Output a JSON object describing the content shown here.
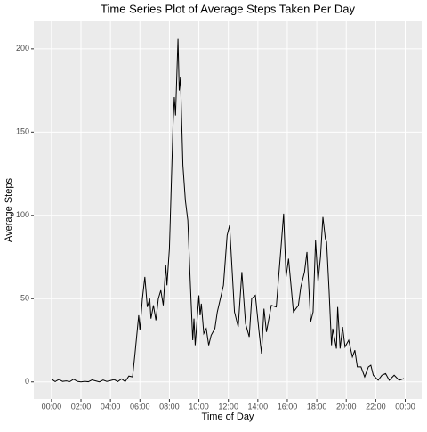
{
  "chart_data": {
    "type": "line",
    "title": "Time Series Plot of Average Steps Taken Per Day",
    "x_label": "Time of Day",
    "y_label": "Average Steps",
    "x": [
      0,
      15,
      30,
      45,
      60,
      75,
      90,
      105,
      120,
      135,
      150,
      165,
      180,
      195,
      210,
      225,
      240,
      255,
      270,
      285,
      300,
      315,
      330,
      340,
      355,
      360,
      370,
      380,
      390,
      400,
      405,
      415,
      425,
      435,
      445,
      455,
      465,
      470,
      480,
      495,
      500,
      505,
      515,
      520,
      525,
      535,
      545,
      555,
      565,
      575,
      580,
      585,
      600,
      605,
      610,
      620,
      630,
      640,
      650,
      665,
      675,
      700,
      715,
      725,
      735,
      745,
      760,
      775,
      790,
      805,
      815,
      830,
      845,
      855,
      865,
      875,
      895,
      915,
      935,
      945,
      955,
      965,
      985,
      1005,
      1015,
      1030,
      1040,
      1055,
      1065,
      1075,
      1085,
      1095,
      1105,
      1115,
      1120,
      1130,
      1140,
      1145,
      1160,
      1165,
      1175,
      1185,
      1195,
      1210,
      1225,
      1235,
      1245,
      1260,
      1275,
      1290,
      1300,
      1310,
      1330,
      1345,
      1360,
      1375,
      1395,
      1415,
      1435
    ],
    "series": [
      {
        "name": "Average Steps",
        "color": "#000000",
        "values": [
          1.7,
          0.2,
          1.5,
          0.3,
          0.6,
          0.2,
          1.6,
          0.3,
          0,
          0.3,
          0.1,
          1.2,
          0.6,
          0,
          1.1,
          0.3,
          0.8,
          1.4,
          0.2,
          1.8,
          0.2,
          3.5,
          3,
          17,
          40,
          31,
          50,
          63,
          45,
          50,
          38,
          46,
          37,
          50,
          55,
          46,
          70,
          58,
          80,
          155,
          171,
          160,
          206,
          175,
          183,
          130,
          109,
          97,
          60,
          25,
          38,
          22,
          52,
          40,
          47,
          29,
          32,
          22,
          28,
          32,
          42,
          58,
          88,
          94,
          68,
          42,
          33,
          66,
          35,
          27,
          50,
          52,
          30,
          17,
          44,
          30,
          46,
          45,
          82,
          101,
          63,
          74,
          42,
          46,
          57,
          66,
          78,
          36,
          42,
          85,
          60,
          75,
          99,
          86,
          84,
          55,
          22,
          32,
          20,
          45,
          20,
          33,
          21,
          25,
          15,
          19,
          9,
          9,
          3,
          9,
          10,
          4,
          1,
          4,
          5,
          1,
          4,
          1,
          2
        ]
      }
    ],
    "xlim": [
      -72,
      1507
    ],
    "xticks": [
      {
        "value": 0,
        "label": "00:00"
      },
      {
        "value": 120,
        "label": "02:00"
      },
      {
        "value": 240,
        "label": "04:00"
      },
      {
        "value": 360,
        "label": "06:00"
      },
      {
        "value": 480,
        "label": "08:00"
      },
      {
        "value": 600,
        "label": "10:00"
      },
      {
        "value": 720,
        "label": "12:00"
      },
      {
        "value": 840,
        "label": "14:00"
      },
      {
        "value": 960,
        "label": "16:00"
      },
      {
        "value": 1080,
        "label": "18:00"
      },
      {
        "value": 1200,
        "label": "20:00"
      },
      {
        "value": 1320,
        "label": "22:00"
      },
      {
        "value": 1440,
        "label": "00:00"
      }
    ],
    "ylim": [
      -10.3,
      216.5
    ],
    "yticks": [
      0,
      50,
      100,
      150,
      200
    ],
    "grid": true
  }
}
